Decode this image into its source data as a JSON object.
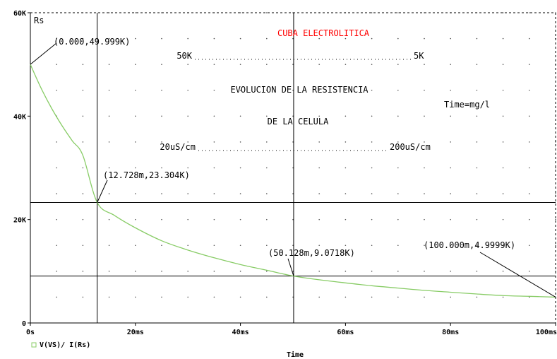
{
  "chart_data": {
    "type": "line",
    "ylabel_top": "Rs",
    "xlabel": "Time",
    "xlim": [
      0,
      100
    ],
    "ylim": [
      0,
      60
    ],
    "x_ticks": [
      {
        "value": 0,
        "label": "0s"
      },
      {
        "value": 20,
        "label": "20ms"
      },
      {
        "value": 40,
        "label": "40ms"
      },
      {
        "value": 60,
        "label": "60ms"
      },
      {
        "value": 80,
        "label": "80ms"
      },
      {
        "value": 100,
        "label": "100ms"
      }
    ],
    "y_ticks": [
      {
        "value": 0,
        "label": "0"
      },
      {
        "value": 20,
        "label": "20K"
      },
      {
        "value": 40,
        "label": "40K"
      },
      {
        "value": 60,
        "label": "60K"
      }
    ],
    "series": [
      {
        "name": "V(VS)/ I(Rs)",
        "color": "#88cc66",
        "x": [
          0,
          2,
          4,
          6,
          8,
          10,
          12.728,
          16,
          20,
          25,
          30,
          35,
          40,
          45,
          50.128,
          55,
          60,
          65,
          70,
          75,
          80,
          85,
          90,
          95,
          100
        ],
        "y": [
          49.999,
          45.5,
          41.6,
          38.2,
          35.2,
          32.4,
          23.304,
          20.8,
          18.4,
          15.9,
          14.1,
          12.6,
          11.3,
          10.2,
          9.0718,
          8.35,
          7.75,
          7.2,
          6.75,
          6.3,
          5.95,
          5.6,
          5.3,
          5.15,
          4.9999
        ]
      }
    ],
    "grid": "dotted",
    "legend": "bottom-left",
    "cursor_lines": {
      "vertical": [
        12.728,
        50.128
      ],
      "horizontal": [
        23.304,
        9.0718
      ]
    },
    "markers": [
      {
        "x": 0,
        "y": 49.999,
        "label": "(0.000,49.999K)"
      },
      {
        "x": 12.728,
        "y": 23.304,
        "label": "(12.728m,23.304K)"
      },
      {
        "x": 50.128,
        "y": 9.0718,
        "label": "(50.128m,9.0718K)"
      },
      {
        "x": 100,
        "y": 4.9999,
        "label": "(100.000m,4.9999K)"
      }
    ],
    "annotations": {
      "title": "CUBA ELECTROLITICA",
      "range_left": "50K",
      "range_right": "5K",
      "desc_line1": "EVOLUCION DE LA RESISTENCIA",
      "desc_line2": "DE LA CELULA",
      "time_unit": "Time=mg/l",
      "cond_left": "20uS/cm",
      "cond_right": "200uS/cm"
    },
    "title_color": "#ff0000",
    "curve_color": "#88cc66"
  }
}
